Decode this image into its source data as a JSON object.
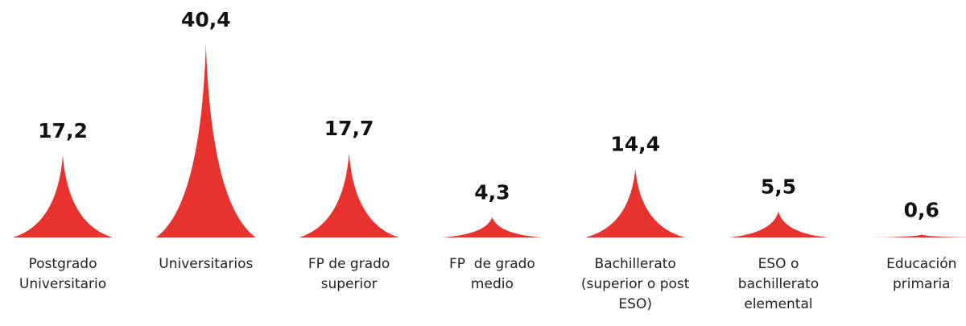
{
  "chart_data": {
    "type": "spike",
    "categories": [
      "Postgrado Universitario",
      "Universitarios",
      "FP de grado superior",
      "FP  de grado medio",
      "Bachillerato (superior o post ESO)",
      "ESO o bachillerato elemental",
      "Educación primaria"
    ],
    "values": [
      17.2,
      40.4,
      17.7,
      4.3,
      14.4,
      5.5,
      0.6
    ],
    "value_labels": [
      "17,2",
      "40,4",
      "17,7",
      "4,3",
      "14,4",
      "5,5",
      "0,6"
    ],
    "color": "#e8322d"
  }
}
